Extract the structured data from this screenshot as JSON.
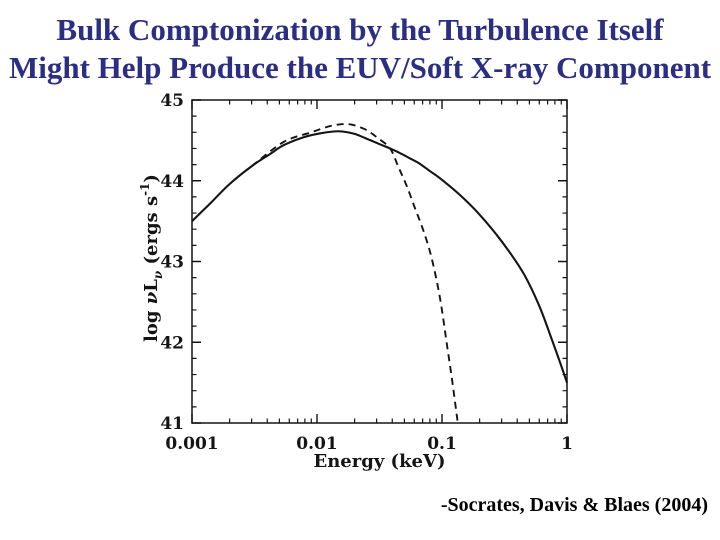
{
  "slide": {
    "title_line1": "Bulk Comptonization by the Turbulence Itself",
    "title_line2": "Might Help Produce the EUV/Soft X-ray Component",
    "title_color": "#2b2e83",
    "citation": "-Socrates, Davis & Blaes (2004)"
  },
  "chart_data": {
    "type": "line",
    "title": "",
    "xlabel": "Energy (keV)",
    "ylabel": "log nuL_nu (ergs s^-1)",
    "ylabel_parts": [
      {
        "t": "log ",
        "s": "n"
      },
      {
        "t": "ν",
        "s": "i"
      },
      {
        "t": "L",
        "s": "n"
      },
      {
        "t": "ν",
        "s": "sub"
      },
      {
        "t": " (ergs s",
        "s": "n"
      },
      {
        "t": "-1",
        "s": "sup"
      },
      {
        "t": ")",
        "s": "n"
      }
    ],
    "x_scale": "log",
    "y_scale": "linear",
    "xlim": [
      0.001,
      1
    ],
    "ylim": [
      41,
      45
    ],
    "x_ticks": [
      {
        "v": 0.001,
        "label": "0.001"
      },
      {
        "v": 0.01,
        "label": "0.01"
      },
      {
        "v": 0.1,
        "label": "0.1"
      },
      {
        "v": 1,
        "label": "1"
      }
    ],
    "y_ticks": [
      {
        "v": 45,
        "label": "45"
      },
      {
        "v": 44,
        "label": "44"
      },
      {
        "v": 43,
        "label": "43"
      },
      {
        "v": 42,
        "label": "42"
      },
      {
        "v": 41,
        "label": "41"
      }
    ],
    "y_minor_step": 0.2,
    "x_minor": "log-decades",
    "grid": false,
    "legend": null,
    "ink_color": "#141414",
    "series": [
      {
        "name": "solid-curve",
        "style": "solid",
        "points": [
          [
            0.001,
            43.5
          ],
          [
            0.0014,
            43.72
          ],
          [
            0.002,
            43.96
          ],
          [
            0.003,
            44.18
          ],
          [
            0.0042,
            44.33
          ],
          [
            0.0054,
            44.44
          ],
          [
            0.0075,
            44.53
          ],
          [
            0.01,
            44.58
          ],
          [
            0.0135,
            44.61
          ],
          [
            0.016,
            44.61
          ],
          [
            0.02,
            44.58
          ],
          [
            0.025,
            44.52
          ],
          [
            0.032,
            44.45
          ],
          [
            0.0384,
            44.4
          ],
          [
            0.045,
            44.35
          ],
          [
            0.055,
            44.28
          ],
          [
            0.065,
            44.22
          ],
          [
            0.08,
            44.12
          ],
          [
            0.0965,
            44.03
          ],
          [
            0.14,
            43.82
          ],
          [
            0.2,
            43.58
          ],
          [
            0.3,
            43.25
          ],
          [
            0.45,
            42.85
          ],
          [
            0.6,
            42.45
          ],
          [
            0.75,
            42.05
          ],
          [
            0.88,
            41.75
          ],
          [
            1.0,
            41.5
          ]
        ]
      },
      {
        "name": "dashed-curve",
        "style": "dashed",
        "points": [
          [
            0.003,
            44.18
          ],
          [
            0.0054,
            44.48
          ],
          [
            0.009,
            44.6
          ],
          [
            0.013,
            44.68
          ],
          [
            0.018,
            44.7
          ],
          [
            0.024,
            44.64
          ],
          [
            0.03,
            44.54
          ],
          [
            0.0384,
            44.4
          ],
          [
            0.0448,
            44.17
          ],
          [
            0.0524,
            43.93
          ],
          [
            0.0608,
            43.66
          ],
          [
            0.0707,
            43.39
          ],
          [
            0.0824,
            43.05
          ],
          [
            0.0963,
            42.55
          ],
          [
            0.11,
            41.95
          ],
          [
            0.12,
            41.55
          ],
          [
            0.133,
            41.03
          ]
        ]
      }
    ]
  }
}
